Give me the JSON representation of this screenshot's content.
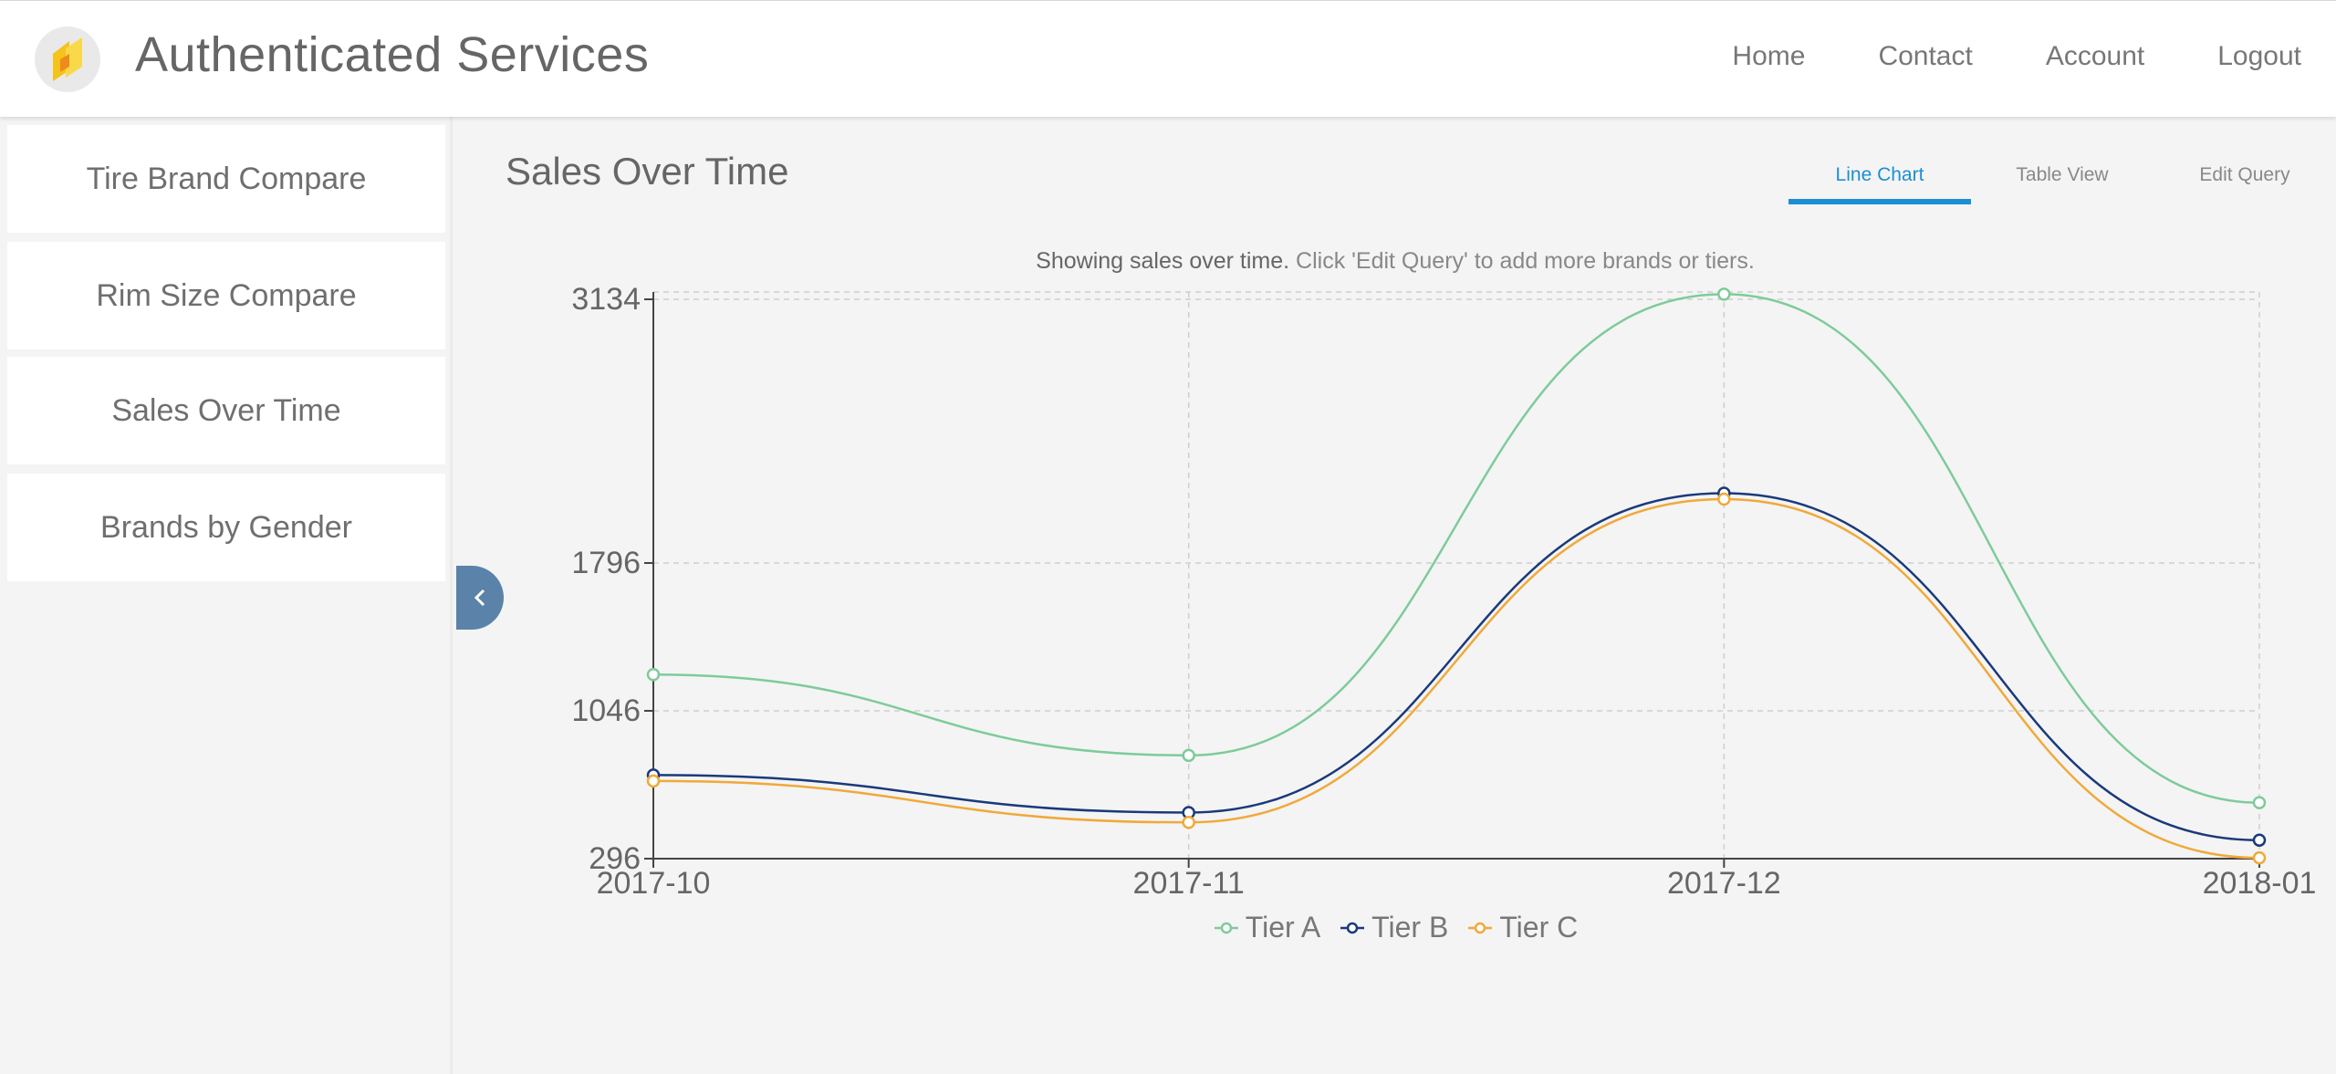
{
  "header": {
    "title": "Authenticated Services",
    "nav": [
      "Home",
      "Contact",
      "Account",
      "Logout"
    ]
  },
  "sidebar": {
    "items": [
      {
        "label": "Tire Brand Compare"
      },
      {
        "label": "Rim Size Compare"
      },
      {
        "label": "Sales Over Time"
      },
      {
        "label": "Brands by Gender"
      }
    ]
  },
  "main": {
    "title": "Sales Over Time",
    "tabs": [
      {
        "label": "Line Chart",
        "active": true
      },
      {
        "label": "Table View",
        "active": false
      },
      {
        "label": "Edit Query",
        "active": false
      }
    ],
    "note_bold": "Showing sales over time.",
    "note_rest": "Click 'Edit Query' to add more brands or tiers."
  },
  "icons": {
    "logo": "app-logo-icon",
    "collapse": "chevron-left-icon",
    "legend_marker": "circle-line-icon"
  },
  "colors": {
    "accent": "#1b8fd3",
    "collapse_button": "#5b82a8",
    "tier_a": "#7ecb9a",
    "tier_b": "#1a3a7a",
    "tier_c": "#f0a93a"
  },
  "chart_data": {
    "type": "line",
    "categories": [
      "2017-10",
      "2017-11",
      "2017-12",
      "2018-01"
    ],
    "y_ticks": [
      "3134",
      "1796",
      "1046",
      "296"
    ],
    "ylim": [
      296,
      3134
    ],
    "grid": true,
    "legend_position": "bottom",
    "series": [
      {
        "name": "Tier A",
        "color": "#7ecb9a",
        "values": [
          1230,
          820,
          3160,
          580
        ]
      },
      {
        "name": "Tier B",
        "color": "#1a3a7a",
        "values": [
          720,
          530,
          2150,
          390
        ]
      },
      {
        "name": "Tier C",
        "color": "#f0a93a",
        "values": [
          690,
          480,
          2120,
          300
        ]
      }
    ]
  }
}
